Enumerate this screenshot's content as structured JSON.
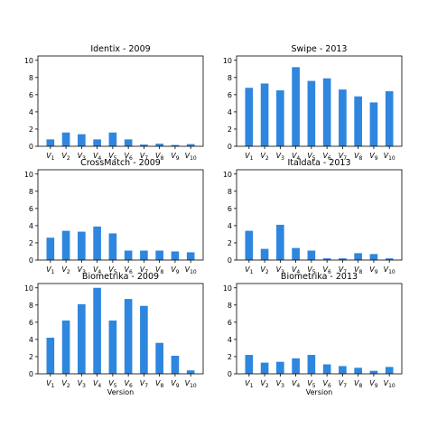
{
  "chart_data": [
    {
      "type": "bar",
      "title": "Identix - 2009",
      "categories": [
        "V1",
        "V2",
        "V3",
        "V4",
        "V5",
        "V6",
        "V7",
        "V8",
        "V9",
        "V10"
      ],
      "values": [
        0.8,
        1.6,
        1.4,
        0.8,
        1.6,
        0.8,
        0.2,
        0.3,
        0.15,
        0.25
      ],
      "xlabel": "",
      "ylabel": "",
      "ylim": [
        0,
        10.5
      ],
      "yticks": [
        0,
        2,
        4,
        6,
        8,
        10
      ]
    },
    {
      "type": "bar",
      "title": "Swipe - 2013",
      "categories": [
        "V1",
        "V2",
        "V3",
        "V4",
        "V5",
        "V6",
        "V7",
        "V8",
        "V9",
        "V10"
      ],
      "values": [
        6.8,
        7.3,
        6.5,
        9.2,
        7.6,
        7.9,
        6.6,
        5.8,
        5.1,
        6.4
      ],
      "xlabel": "",
      "ylabel": "",
      "ylim": [
        0,
        10.5
      ],
      "yticks": [
        0,
        2,
        4,
        6,
        8,
        10
      ]
    },
    {
      "type": "bar",
      "title": "CrossMatch - 2009",
      "categories": [
        "V1",
        "V2",
        "V3",
        "V4",
        "V5",
        "V6",
        "V7",
        "V8",
        "V9",
        "V10"
      ],
      "values": [
        2.6,
        3.4,
        3.3,
        3.9,
        3.1,
        1.1,
        1.1,
        1.1,
        1.0,
        0.9
      ],
      "xlabel": "",
      "ylabel": "",
      "ylim": [
        0,
        10.5
      ],
      "yticks": [
        0,
        2,
        4,
        6,
        8,
        10
      ]
    },
    {
      "type": "bar",
      "title": "Italdata - 2013",
      "categories": [
        "V1",
        "V2",
        "V3",
        "V4",
        "V5",
        "V6",
        "V7",
        "V8",
        "V9",
        "V10"
      ],
      "values": [
        3.4,
        1.3,
        4.1,
        1.4,
        1.1,
        0.2,
        0.2,
        0.8,
        0.7,
        0.2
      ],
      "xlabel": "",
      "ylabel": "",
      "ylim": [
        0,
        10.5
      ],
      "yticks": [
        0,
        2,
        4,
        6,
        8,
        10
      ]
    },
    {
      "type": "bar",
      "title": "Biometrika - 2009",
      "categories": [
        "V1",
        "V2",
        "V3",
        "V4",
        "V5",
        "V6",
        "V7",
        "V8",
        "V9",
        "V10"
      ],
      "values": [
        4.2,
        6.2,
        8.1,
        10.0,
        6.2,
        8.7,
        7.9,
        3.6,
        2.1,
        0.4
      ],
      "xlabel": "Version",
      "ylabel": "",
      "ylim": [
        0,
        10.5
      ],
      "yticks": [
        0,
        2,
        4,
        6,
        8,
        10
      ]
    },
    {
      "type": "bar",
      "title": "Biometrika - 2013",
      "categories": [
        "V1",
        "V2",
        "V3",
        "V4",
        "V5",
        "V6",
        "V7",
        "V8",
        "V9",
        "V10"
      ],
      "values": [
        2.2,
        1.3,
        1.4,
        1.8,
        2.2,
        1.1,
        0.9,
        0.7,
        0.35,
        0.8
      ],
      "xlabel": "Version",
      "ylabel": "",
      "ylim": [
        0,
        10.5
      ],
      "yticks": [
        0,
        2,
        4,
        6,
        8,
        10
      ]
    }
  ],
  "style": {
    "bar_color": "#2e86de",
    "grid": false
  }
}
